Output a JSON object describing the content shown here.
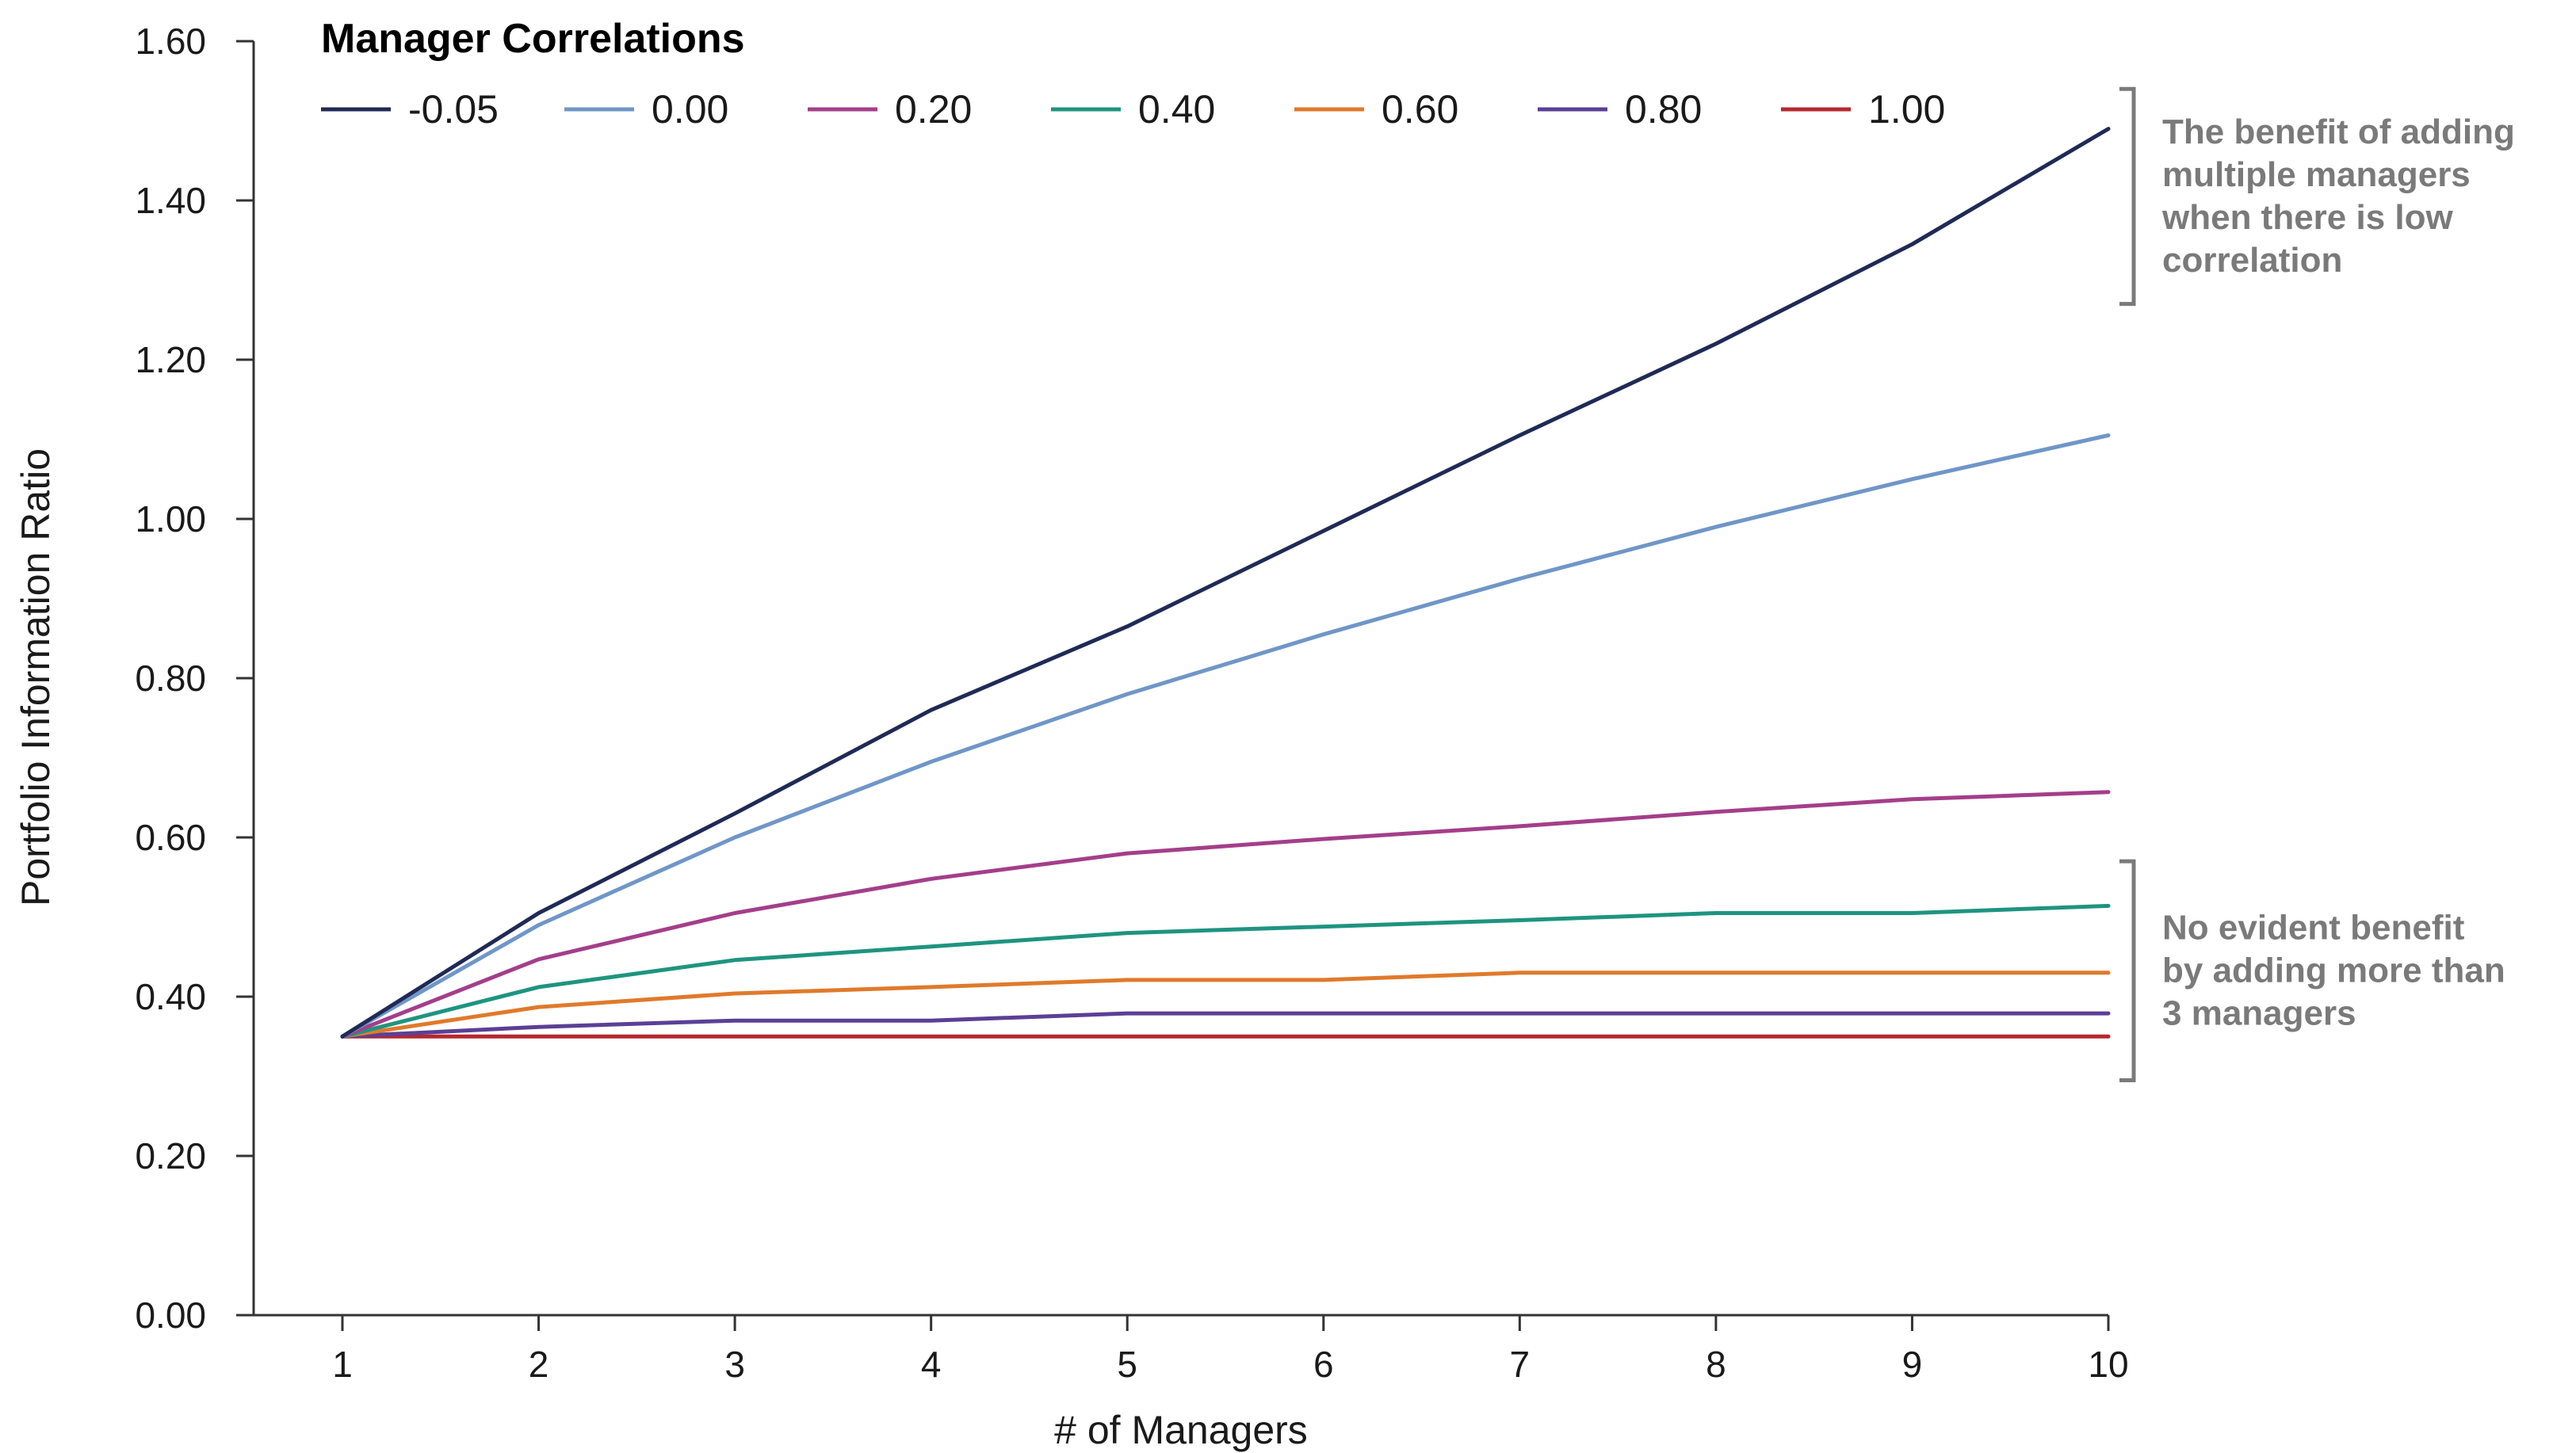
{
  "chart_data": {
    "type": "line",
    "xlabel": "# of Managers",
    "ylabel": "Portfolio Information Ratio",
    "x": [
      1,
      2,
      3,
      4,
      5,
      6,
      7,
      8,
      9,
      10
    ],
    "xlim": [
      0.55,
      10
    ],
    "ylim": [
      0,
      1.6
    ],
    "y_ticks": [
      0,
      0.2,
      0.4,
      0.6,
      0.8,
      1.0,
      1.2,
      1.4,
      1.6
    ],
    "y_tick_labels": [
      "0.00",
      "0.20",
      "0.40",
      "0.60",
      "0.80",
      "1.00",
      "1.20",
      "1.40",
      "1.60"
    ],
    "x_tick_labels": [
      "1",
      "2",
      "3",
      "4",
      "5",
      "6",
      "7",
      "8",
      "9",
      "10"
    ],
    "grid": false,
    "legend": {
      "title": "Manager Correlations",
      "placement": "top"
    },
    "series": [
      {
        "name": "-0.05",
        "color": "#1f2a56",
        "values": [
          0.35,
          0.505,
          0.63,
          0.76,
          0.865,
          0.985,
          1.105,
          1.22,
          1.345,
          1.49
        ]
      },
      {
        "name": "0.00",
        "color": "#6f96c8",
        "values": [
          0.35,
          0.49,
          0.6,
          0.695,
          0.78,
          0.855,
          0.925,
          0.99,
          1.05,
          1.105
        ]
      },
      {
        "name": "0.20",
        "color": "#a43e8a",
        "values": [
          0.35,
          0.447,
          0.505,
          0.548,
          0.58,
          0.598,
          0.614,
          0.632,
          0.648,
          0.657
        ]
      },
      {
        "name": "0.40",
        "color": "#1e9480",
        "values": [
          0.35,
          0.412,
          0.446,
          0.463,
          0.48,
          0.488,
          0.496,
          0.505,
          0.505,
          0.514
        ]
      },
      {
        "name": "0.60",
        "color": "#e07a2b",
        "values": [
          0.35,
          0.387,
          0.404,
          0.412,
          0.421,
          0.421,
          0.43,
          0.43,
          0.43,
          0.43
        ]
      },
      {
        "name": "0.80",
        "color": "#5b3f96",
        "values": [
          0.35,
          0.362,
          0.37,
          0.37,
          0.379,
          0.379,
          0.379,
          0.379,
          0.379,
          0.379
        ]
      },
      {
        "name": "1.00",
        "color": "#b5282e",
        "values": [
          0.35,
          0.35,
          0.35,
          0.35,
          0.35,
          0.35,
          0.35,
          0.35,
          0.35,
          0.35
        ]
      }
    ],
    "annotations": [
      {
        "lines": [
          "The benefit of adding",
          "multiple managers",
          "when there is low",
          "correlation"
        ],
        "y_range": [
          1.27,
          1.54
        ],
        "color": "#7a7a7a"
      },
      {
        "lines": [
          "No evident benefit",
          "by adding more than",
          "3 managers"
        ],
        "y_range": [
          0.295,
          0.57
        ],
        "color": "#7a7a7a"
      }
    ]
  }
}
